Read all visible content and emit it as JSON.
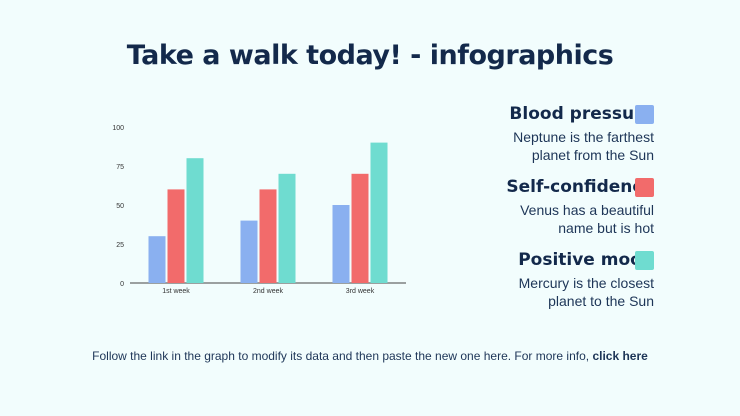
{
  "title": "Take a walk today! - infographics",
  "legend": [
    {
      "name": "Blood pressure",
      "desc_line1": "Neptune is the farthest",
      "desc_line2": "planet from the Sun",
      "color": "#8ab0f0"
    },
    {
      "name": "Self-confidence",
      "desc_line1": "Venus has a beautiful",
      "desc_line2": "name but is hot",
      "color": "#f26b6b"
    },
    {
      "name": "Positive mood",
      "desc_line1": "Mercury is the closest",
      "desc_line2": "planet to the Sun",
      "color": "#6fdcd0"
    }
  ],
  "footer": {
    "text": "Follow the link in the graph to modify its data and then paste the new one here. For more info, ",
    "link": "click here"
  },
  "chart_data": {
    "type": "bar",
    "categories": [
      "1st week",
      "2nd week",
      "3rd week"
    ],
    "series": [
      {
        "name": "Blood pressure",
        "values": [
          30,
          40,
          50
        ],
        "color": "#8ab0f0"
      },
      {
        "name": "Self-confidence",
        "values": [
          60,
          60,
          70
        ],
        "color": "#f26b6b"
      },
      {
        "name": "Positive mood",
        "values": [
          80,
          70,
          90
        ],
        "color": "#6fdcd0"
      }
    ],
    "ylim": [
      0,
      100
    ],
    "yticks": [
      0,
      25,
      50,
      75,
      100
    ],
    "grid": false,
    "legend_position": "right"
  }
}
